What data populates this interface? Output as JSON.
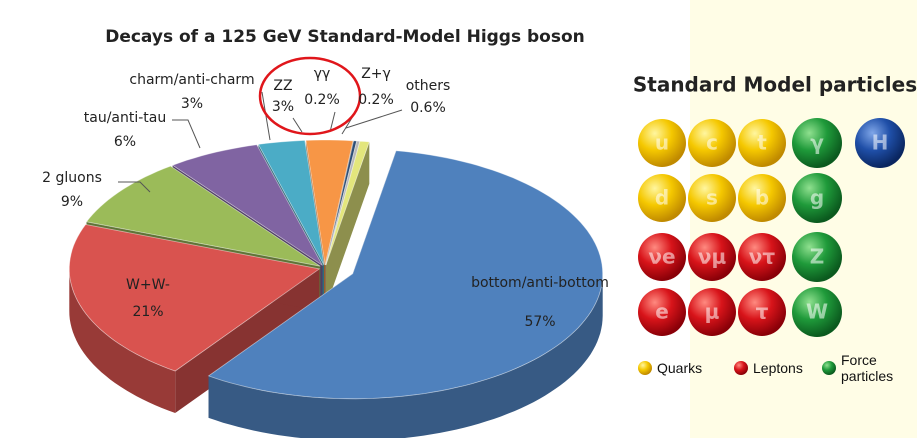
{
  "chart_data": {
    "type": "pie",
    "title": "Decays of a 125 GeV Standard-Model Higgs boson",
    "categories": [
      "bottom/anti-bottom",
      "W+W-",
      "2 gluons",
      "tau/anti-tau",
      "charm/anti-charm",
      "ZZ",
      "γγ",
      "Z+γ",
      "others"
    ],
    "values": [
      57,
      21,
      9,
      6,
      3,
      3,
      0.2,
      0.2,
      0.6
    ],
    "value_labels": [
      "57%",
      "21%",
      "9%",
      "6%",
      "3%",
      "3%",
      "0.2%",
      "0.2%",
      "0.6%"
    ],
    "colors": [
      "#4f81bd",
      "#d9534f",
      "#9bbb59",
      "#8064a2",
      "#4bacc6",
      "#f79646",
      "#2c4d75",
      "#b8b8b8",
      "#e3e67c"
    ]
  },
  "particles": {
    "title": "Standard Model particles",
    "grid": [
      [
        "u",
        "c",
        "t",
        "γ"
      ],
      [
        "d",
        "s",
        "b",
        "g"
      ],
      [
        "νe",
        "νμ",
        "ντ",
        "Z"
      ],
      [
        "e",
        "μ",
        "τ",
        "W"
      ]
    ],
    "higgs": "H",
    "legend": [
      "Quarks",
      "Leptons",
      "Force particles"
    ]
  }
}
